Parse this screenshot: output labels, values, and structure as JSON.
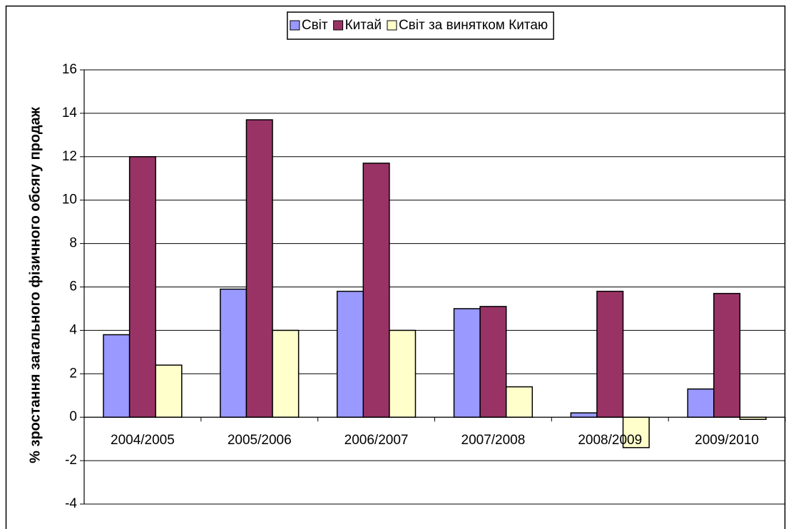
{
  "chart_data": {
    "type": "bar",
    "y_label": "% зростання загального фізичного обсягу продаж",
    "categories": [
      "2004/2005",
      "2005/2006",
      "2006/2007",
      "2007/2008",
      "2008/2009",
      "2009/2010"
    ],
    "series": [
      {
        "name": "Світ",
        "color": "#9999ff",
        "values": [
          3.8,
          5.9,
          5.8,
          5.0,
          0.2,
          1.3
        ]
      },
      {
        "name": "Китай",
        "color": "#993366",
        "values": [
          12.0,
          13.7,
          11.7,
          5.1,
          5.8,
          5.7
        ]
      },
      {
        "name": "Світ за винятком Китаю",
        "color": "#ffffcc",
        "values": [
          2.4,
          4.0,
          4.0,
          1.4,
          -1.4,
          -0.1
        ]
      }
    ],
    "ylim": [
      -4,
      16
    ],
    "yticks": [
      -4,
      -2,
      0,
      2,
      4,
      6,
      8,
      10,
      12,
      14,
      16
    ],
    "grid": true,
    "legend": "top"
  }
}
